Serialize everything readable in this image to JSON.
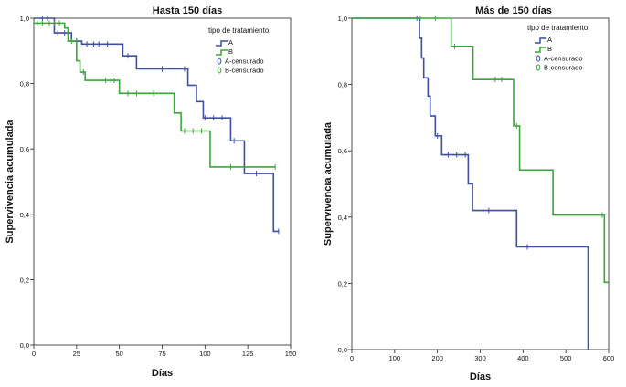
{
  "chart_data": [
    {
      "type": "line",
      "title": "Hasta 150 días",
      "xlabel": "Días",
      "ylabel": "Supervivencia acumulada",
      "xlim": [
        0,
        150
      ],
      "ylim": [
        0,
        1
      ],
      "xticks": [
        0,
        25,
        50,
        75,
        100,
        125,
        150
      ],
      "yticks": [
        0,
        0.2,
        0.4,
        0.6,
        0.8,
        1
      ],
      "xtick_labels": [
        "0",
        "25",
        "50",
        "75",
        "100",
        "125",
        "150"
      ],
      "ytick_labels": [
        "0,0",
        "0,2",
        "0,4",
        "0,6",
        "0,8",
        "1,0"
      ],
      "legend": {
        "title": "tipo de tratamiento",
        "placement": "top-right",
        "items": [
          "A",
          "B",
          "A-censurado",
          "B-censurado"
        ]
      },
      "series": [
        {
          "name": "A",
          "color": "#3f4fa0",
          "steps": [
            [
              0,
              1.0
            ],
            [
              12,
              0.955
            ],
            [
              22,
              0.93
            ],
            [
              28,
              0.921
            ],
            [
              52,
              0.885
            ],
            [
              60,
              0.845
            ],
            [
              90,
              0.795
            ],
            [
              95,
              0.745
            ],
            [
              99,
              0.695
            ],
            [
              115,
              0.625
            ],
            [
              123,
              0.525
            ],
            [
              140,
              0.348
            ],
            [
              143,
              0.348
            ]
          ],
          "censored": [
            [
              5,
              1.0
            ],
            [
              8,
              1.0
            ],
            [
              14,
              0.955
            ],
            [
              18,
              0.955
            ],
            [
              25,
              0.93
            ],
            [
              31,
              0.921
            ],
            [
              35,
              0.921
            ],
            [
              38,
              0.921
            ],
            [
              43,
              0.921
            ],
            [
              55,
              0.885
            ],
            [
              75,
              0.845
            ],
            [
              88,
              0.845
            ],
            [
              100,
              0.695
            ],
            [
              105,
              0.695
            ],
            [
              110,
              0.695
            ],
            [
              117,
              0.625
            ],
            [
              130,
              0.525
            ],
            [
              143,
              0.348
            ]
          ]
        },
        {
          "name": "B",
          "color": "#3aa63a",
          "steps": [
            [
              0,
              0.985
            ],
            [
              18,
              0.97
            ],
            [
              20,
              0.93
            ],
            [
              25,
              0.87
            ],
            [
              27,
              0.835
            ],
            [
              30,
              0.81
            ],
            [
              50,
              0.77
            ],
            [
              82,
              0.71
            ],
            [
              86,
              0.655
            ],
            [
              103,
              0.545
            ],
            [
              141,
              0.545
            ]
          ],
          "censored": [
            [
              2,
              0.985
            ],
            [
              5,
              0.985
            ],
            [
              9,
              0.985
            ],
            [
              12,
              0.985
            ],
            [
              15,
              0.985
            ],
            [
              22,
              0.93
            ],
            [
              29,
              0.835
            ],
            [
              42,
              0.81
            ],
            [
              45,
              0.81
            ],
            [
              47,
              0.81
            ],
            [
              55,
              0.77
            ],
            [
              60,
              0.77
            ],
            [
              70,
              0.77
            ],
            [
              88,
              0.655
            ],
            [
              93,
              0.655
            ],
            [
              98,
              0.655
            ],
            [
              115,
              0.545
            ],
            [
              141,
              0.545
            ]
          ]
        }
      ]
    },
    {
      "type": "line",
      "title": "Más de 150 días",
      "xlabel": "Días",
      "ylabel": "Supervivencia acumulada",
      "xlim": [
        0,
        600
      ],
      "ylim": [
        0,
        1
      ],
      "xticks": [
        0,
        100,
        200,
        300,
        400,
        500,
        600
      ],
      "yticks": [
        0,
        0.2,
        0.4,
        0.6,
        0.8,
        1
      ],
      "xtick_labels": [
        "0",
        "100",
        "200",
        "300",
        "400",
        "500",
        "600"
      ],
      "ytick_labels": [
        "0,0",
        "0,2",
        "0,4",
        "0,6",
        "0,8",
        "1,0"
      ],
      "legend": {
        "title": "tipo de tratamiento",
        "placement": "top-right",
        "items": [
          "A",
          "B",
          "A-censurado",
          "B-censurado"
        ]
      },
      "series": [
        {
          "name": "A",
          "color": "#3f4fa0",
          "steps": [
            [
              0,
              1.0
            ],
            [
              158,
              0.94
            ],
            [
              163,
              0.88
            ],
            [
              168,
              0.82
            ],
            [
              178,
              0.765
            ],
            [
              183,
              0.705
            ],
            [
              195,
              0.645
            ],
            [
              210,
              0.588
            ],
            [
              272,
              0.5
            ],
            [
              282,
              0.42
            ],
            [
              385,
              0.31
            ],
            [
              552,
              0.0
            ]
          ],
          "censored": [
            [
              152,
              1.0
            ],
            [
              200,
              0.645
            ],
            [
              225,
              0.588
            ],
            [
              245,
              0.588
            ],
            [
              265,
              0.588
            ],
            [
              320,
              0.42
            ],
            [
              410,
              0.31
            ]
          ]
        },
        {
          "name": "B",
          "color": "#3aa63a",
          "steps": [
            [
              0,
              1.0
            ],
            [
              232,
              0.915
            ],
            [
              283,
              0.815
            ],
            [
              378,
              0.675
            ],
            [
              392,
              0.542
            ],
            [
              470,
              0.406
            ],
            [
              590,
              0.203
            ],
            [
              600,
              0.203
            ]
          ],
          "censored": [
            [
              160,
              1.0
            ],
            [
              195,
              1.0
            ],
            [
              240,
              0.915
            ],
            [
              335,
              0.815
            ],
            [
              350,
              0.815
            ],
            [
              385,
              0.675
            ],
            [
              585,
              0.406
            ]
          ]
        }
      ]
    }
  ]
}
